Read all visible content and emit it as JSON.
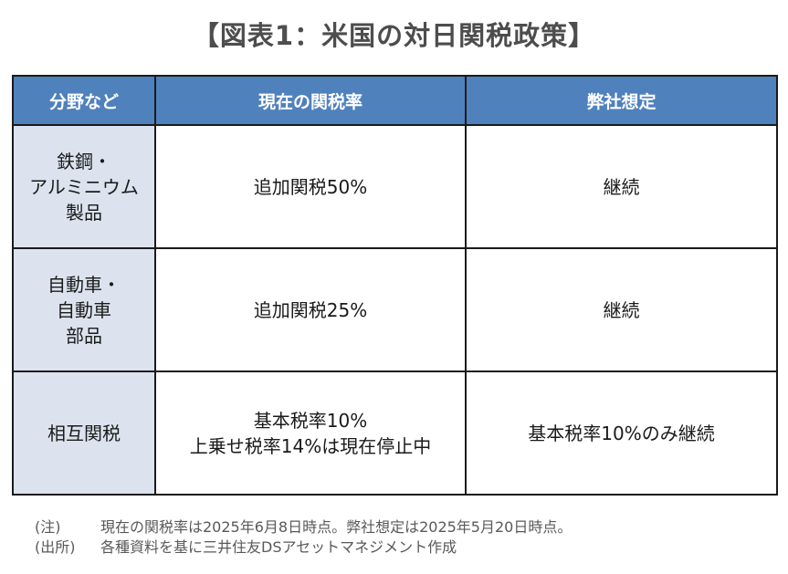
{
  "title": "【図表1：米国の対日関税政策】",
  "table": {
    "headers": [
      "分野など",
      "現在の関税率",
      "弊社想定"
    ],
    "rows": [
      {
        "category": [
          "鉄鋼・",
          "アルミニウム",
          "製品"
        ],
        "current_rate": [
          "追加関税50%"
        ],
        "assumption": [
          "継続"
        ]
      },
      {
        "category": [
          "自動車・",
          "自動車",
          "部品"
        ],
        "current_rate": [
          "追加関税25%"
        ],
        "assumption": [
          "継続"
        ]
      },
      {
        "category": [
          "相互関税"
        ],
        "current_rate": [
          "基本税率10%",
          "上乗せ税率14%は現在停止中"
        ],
        "assumption": [
          "基本税率10%のみ継続"
        ]
      }
    ]
  },
  "notes": [
    {
      "label": "(注)",
      "text": "現在の関税率は2025年6月8日時点。弊社想定は2025年5月20日時点。"
    },
    {
      "label": "(出所)",
      "text": "各種資料を基に三井住友DSアセットマネジメント作成"
    }
  ]
}
